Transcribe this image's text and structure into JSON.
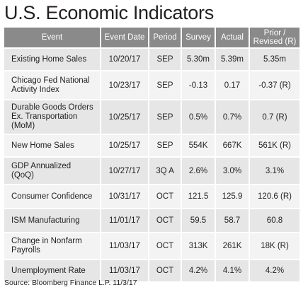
{
  "title": "U.S. Economic Indicators",
  "columns": {
    "event": "Event",
    "event_date": "Event Date",
    "period": "Period",
    "survey": "Survey",
    "actual": "Actual",
    "prior_line1": "Prior /",
    "prior_line2": "Revised (R)"
  },
  "rows": [
    {
      "event_line1": "Existing Home Sales",
      "event_line2": "",
      "event_line3": "",
      "date": "10/20/17",
      "period": "SEP",
      "survey": "5.30m",
      "actual": "5.39m",
      "prior": "5.35m"
    },
    {
      "event_line1": "Chicago Fed National",
      "event_line2": "Activity Index",
      "event_line3": "",
      "date": "10/23/17",
      "period": "SEP",
      "survey": "-0.13",
      "actual": "0.17",
      "prior": "-0.37 (R)"
    },
    {
      "event_line1": "Durable Goods Orders",
      "event_line2": "Ex. Transportation",
      "event_line3": "(MoM)",
      "date": "10/25/17",
      "period": "SEP",
      "survey": "0.5%",
      "actual": "0.7%",
      "prior": "0.7 (R)"
    },
    {
      "event_line1": "New Home Sales",
      "event_line2": "",
      "event_line3": "",
      "date": "10/25/17",
      "period": "SEP",
      "survey": "554K",
      "actual": "667K",
      "prior": "561K (R)"
    },
    {
      "event_line1": "GDP Annualized",
      "event_line2": "(QoQ)",
      "event_line3": "",
      "date": "10/27/17",
      "period": "3Q A",
      "survey": "2.6%",
      "actual": "3.0%",
      "prior": "3.1%"
    },
    {
      "event_line1": "Consumer Confidence",
      "event_line2": "",
      "event_line3": "",
      "date": "10/31/17",
      "period": "OCT",
      "survey": "121.5",
      "actual": "125.9",
      "prior": "120.6 (R)"
    },
    {
      "event_line1": "ISM Manufacturing",
      "event_line2": "",
      "event_line3": "",
      "date": "11/01/17",
      "period": "OCT",
      "survey": "59.5",
      "actual": "58.7",
      "prior": "60.8"
    },
    {
      "event_line1": "Change in Nonfarm",
      "event_line2": "Payrolls",
      "event_line3": "",
      "date": "11/03/17",
      "period": "OCT",
      "survey": "313K",
      "actual": "261K",
      "prior": "18K (R)"
    },
    {
      "event_line1": "Unemployment Rate",
      "event_line2": "",
      "event_line3": "",
      "date": "11/03/17",
      "period": "OCT",
      "survey": "4.2%",
      "actual": "4.1%",
      "prior": "4.2%"
    }
  ],
  "source": "Source: Bloomberg Finance L.P. 11/3/17",
  "colors": {
    "header_bg": "#8a8a8a",
    "row_dark": "#e6e6e6",
    "row_light": "#f3f3f3"
  }
}
